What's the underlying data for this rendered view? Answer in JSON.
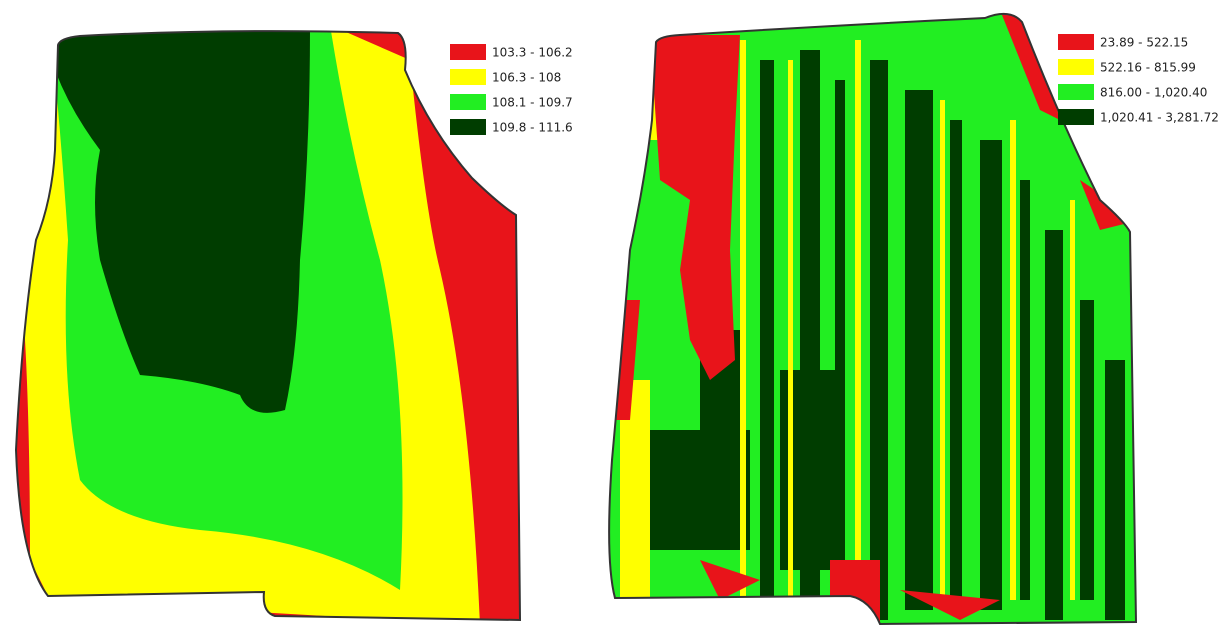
{
  "maps": [
    {
      "legend": [
        {
          "label": "103.3 - 106.2",
          "color": "#e8141a"
        },
        {
          "label": "106.3 - 108",
          "color": "#ffff00"
        },
        {
          "label": "108.1 - 109.7",
          "color": "#22ee22"
        },
        {
          "label": "109.8 - 111.6",
          "color": "#003d00"
        }
      ]
    },
    {
      "legend": [
        {
          "label": "23.89 - 522.15",
          "color": "#e8141a"
        },
        {
          "label": "522.16 - 815.99",
          "color": "#ffff00"
        },
        {
          "label": "816.00 - 1,020.40",
          "color": "#22ee22"
        },
        {
          "label": "1,020.41 - 3,281.72",
          "color": "#003d00"
        }
      ]
    }
  ]
}
